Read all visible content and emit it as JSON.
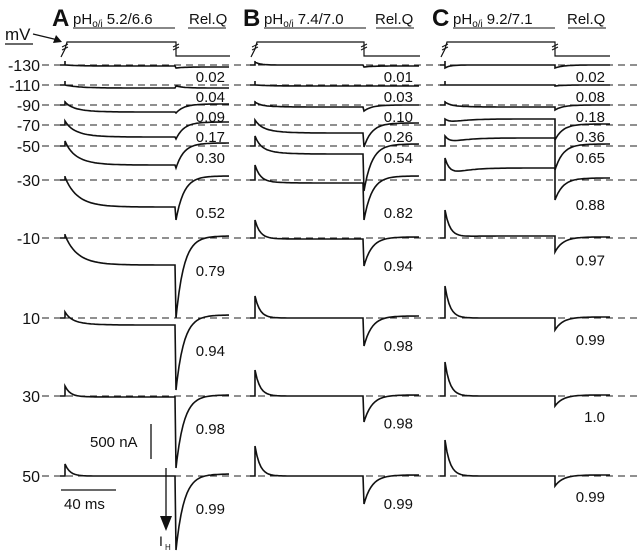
{
  "figure": {
    "unit_label": "mV",
    "rel_q_header": "Rel.Q",
    "scale_current": "500 nA",
    "scale_time": "40 ms",
    "ih_label": "I",
    "ih_sub": "H"
  },
  "chart_data": {
    "type": "line",
    "title": "",
    "voltages_mV": [
      -130,
      -110,
      -90,
      -70,
      -50,
      -30,
      -10,
      10,
      30,
      50
    ],
    "series": [
      {
        "panel": "A",
        "ph_prefix": "pH",
        "ph_sub": "o/i",
        "ph_value": "5.2/6.6",
        "rel_q": [
          "0.02",
          "0.04",
          "0.09",
          "0.17",
          "0.30",
          "0.52",
          "0.79",
          "0.94",
          "0.98",
          "0.99"
        ]
      },
      {
        "panel": "B",
        "ph_prefix": "pH",
        "ph_sub": "o/i",
        "ph_value": "7.4/7.0",
        "rel_q": [
          "0.01",
          "0.03",
          "0.10",
          "0.26",
          "0.54",
          "0.82",
          "0.94",
          "0.98",
          "0.98",
          "0.99"
        ]
      },
      {
        "panel": "C",
        "ph_prefix": "pH",
        "ph_sub": "o/i",
        "ph_value": "9.2/7.1",
        "rel_q": [
          "0.02",
          "0.08",
          "0.18",
          "0.36",
          "0.65",
          "0.88",
          "0.97",
          "0.99",
          "1.0",
          "0.99"
        ]
      }
    ]
  }
}
